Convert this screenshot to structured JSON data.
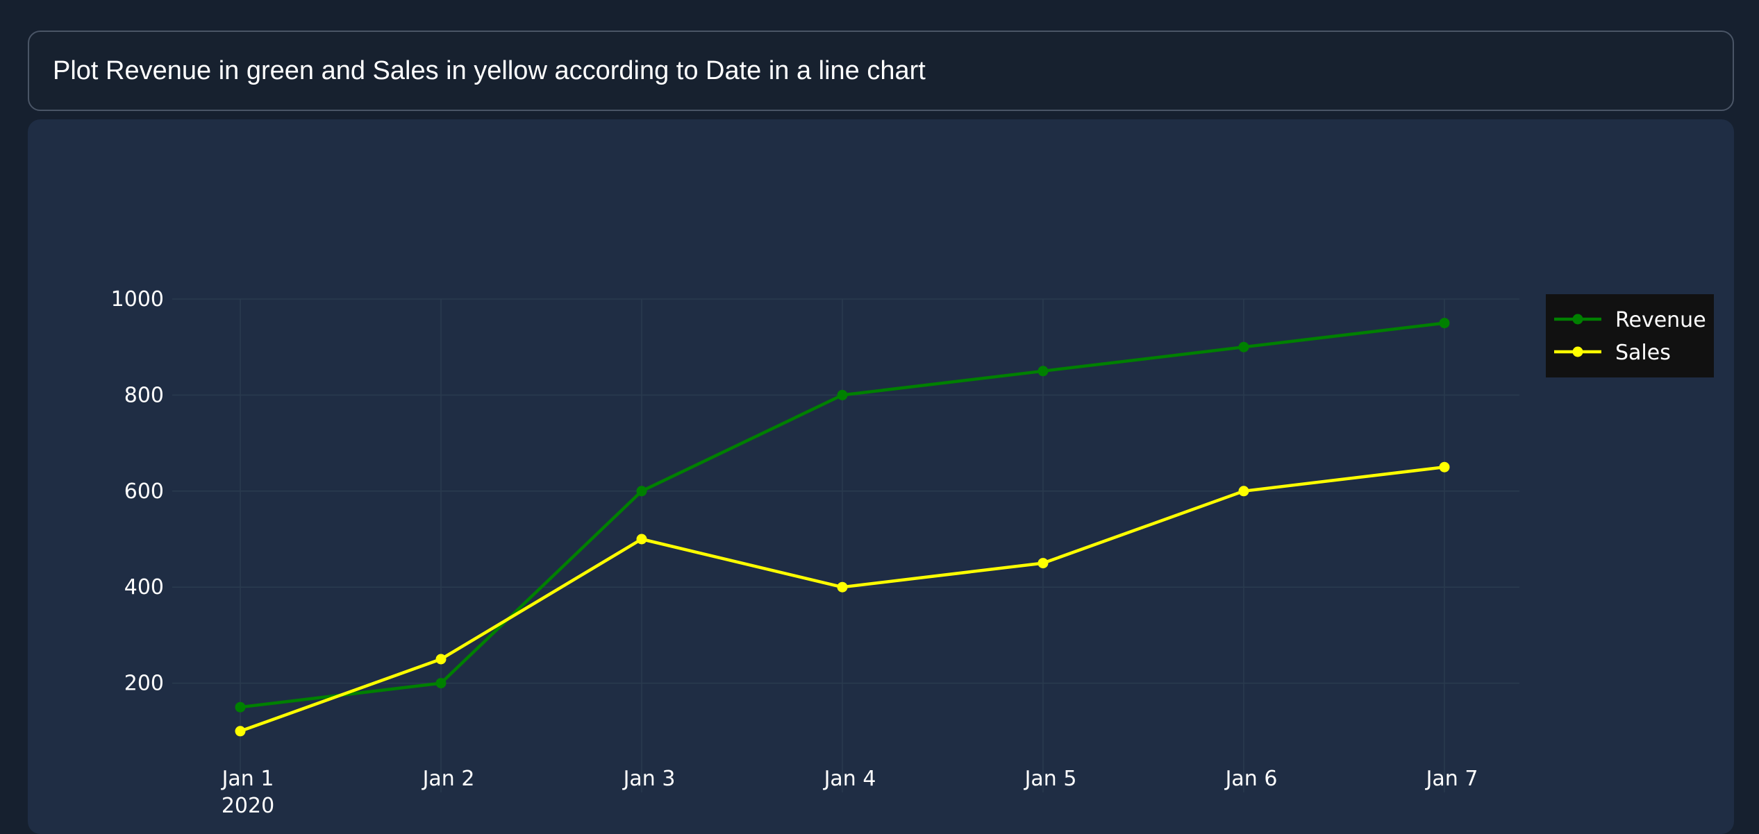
{
  "prompt": "Plot Revenue in green and Sales in yellow according to Date in a line chart",
  "chart_data": {
    "type": "line",
    "title": "",
    "xlabel": "",
    "ylabel": "",
    "x": [
      "2020-01-01",
      "2020-01-02",
      "2020-01-03",
      "2020-01-04",
      "2020-01-05",
      "2020-01-06",
      "2020-01-07"
    ],
    "x_tick_labels": [
      "Jan 1",
      "Jan 2",
      "Jan 3",
      "Jan 4",
      "Jan 5",
      "Jan 6",
      "Jan 7"
    ],
    "x_tick_sublabel": "2020",
    "y_ticks": [
      200,
      400,
      600,
      800,
      1000
    ],
    "ylim": [
      60,
      1000
    ],
    "grid": true,
    "legend_position": "top-right",
    "series": [
      {
        "name": "Revenue",
        "color": "#008000",
        "values": [
          150,
          200,
          600,
          800,
          850,
          900,
          950
        ]
      },
      {
        "name": "Sales",
        "color": "#ffff00",
        "values": [
          100,
          250,
          500,
          400,
          450,
          600,
          650
        ]
      }
    ]
  },
  "colors": {
    "page_background": "#16202f",
    "panel_background": "#1f2d44",
    "grid": "#2a3b4f",
    "legend_background": "#111111"
  }
}
